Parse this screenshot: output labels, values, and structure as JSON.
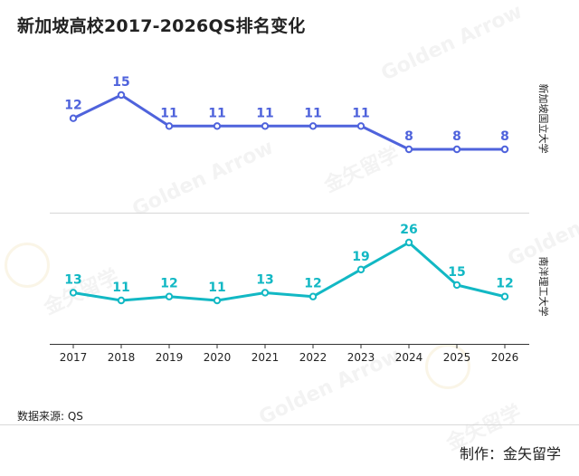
{
  "title": "新加坡高校2017-2026QS排名变化",
  "source": "数据来源: QS",
  "credit": "制作：金矢留学",
  "watermark": {
    "text_en": "Golden Arrow",
    "text_cn": "金矢留学"
  },
  "colors": {
    "nus": "#4f63dc",
    "ntu": "#12b8c4",
    "axis": "#333333"
  },
  "chart_data": [
    {
      "type": "line",
      "title": "新加坡国立大学",
      "series_label": "新加坡国立大学",
      "x": [
        "2017",
        "2018",
        "2019",
        "2020",
        "2021",
        "2022",
        "2023",
        "2024",
        "2025",
        "2026"
      ],
      "values": [
        12,
        15,
        11,
        11,
        11,
        11,
        11,
        8,
        8,
        8
      ],
      "xlabel": "",
      "ylabel": "",
      "ylim": [
        6,
        17
      ]
    },
    {
      "type": "line",
      "title": "南洋理工大学",
      "series_label": "南洋理工大学",
      "x": [
        "2017",
        "2018",
        "2019",
        "2020",
        "2021",
        "2022",
        "2023",
        "2024",
        "2025",
        "2026"
      ],
      "values": [
        13,
        11,
        12,
        11,
        13,
        12,
        19,
        26,
        15,
        12
      ],
      "xlabel": "",
      "ylabel": "",
      "ylim": [
        4,
        29
      ]
    }
  ]
}
